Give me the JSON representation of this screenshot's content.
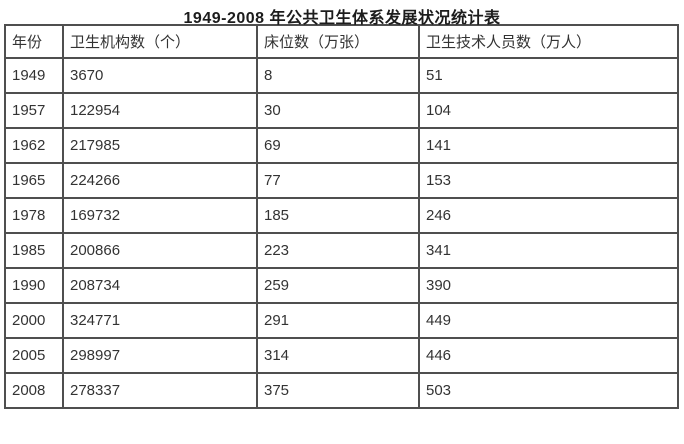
{
  "colors": {
    "border": "#4f4f4f",
    "text": "#333333",
    "title_text": "#1c1c1c",
    "background": "#ffffff"
  },
  "chart_data": {
    "type": "table",
    "title": "1949-2008 年公共卫生体系发展状况统计表",
    "columns": [
      "年份",
      "卫生机构数（个）",
      "床位数（万张）",
      "卫生技术人员数（万人）"
    ],
    "rows": [
      [
        "1949",
        "3670",
        "8",
        "51"
      ],
      [
        "1957",
        "122954",
        "30",
        "104"
      ],
      [
        "1962",
        "217985",
        "69",
        "141"
      ],
      [
        "1965",
        "224266",
        "77",
        "153"
      ],
      [
        "1978",
        "169732",
        "185",
        "246"
      ],
      [
        "1985",
        "200866",
        "223",
        "341"
      ],
      [
        "1990",
        "208734",
        "259",
        "390"
      ],
      [
        "2000",
        "324771",
        "291",
        "449"
      ],
      [
        "2005",
        "298997",
        "314",
        "446"
      ],
      [
        "2008",
        "278337",
        "375",
        "503"
      ]
    ]
  }
}
